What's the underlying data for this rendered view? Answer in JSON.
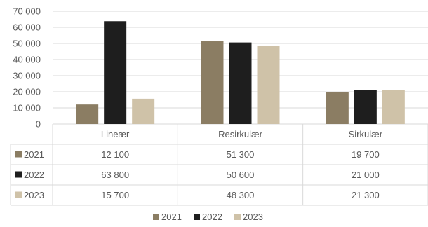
{
  "chart_data": {
    "type": "bar",
    "categories": [
      "Lineær",
      "Resirkulær",
      "Sirkulær"
    ],
    "series": [
      {
        "name": "2021",
        "color": "#8b7d63",
        "values": [
          12100,
          51300,
          19700
        ],
        "labels": [
          "12 100",
          "51 300",
          "19 700"
        ]
      },
      {
        "name": "2022",
        "color": "#1e1e1e",
        "values": [
          63800,
          50600,
          21000
        ],
        "labels": [
          "63 800",
          "50 600",
          "21 000"
        ]
      },
      {
        "name": "2023",
        "color": "#cfc2a8",
        "values": [
          15700,
          48300,
          21300
        ],
        "labels": [
          "15 700",
          "48 300",
          "21 300"
        ]
      }
    ],
    "yticks": [
      "0",
      "10 000",
      "20 000",
      "30 000",
      "40 000",
      "50 000",
      "60 000",
      "70 000"
    ],
    "ylim": [
      0,
      70000
    ],
    "grid": true,
    "data_table": true,
    "legend_position": "bottom",
    "title": "",
    "xlabel": "",
    "ylabel": ""
  }
}
